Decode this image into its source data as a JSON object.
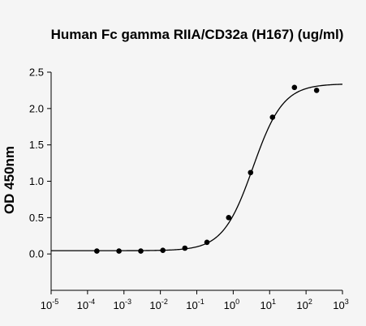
{
  "chart_data": {
    "type": "scatter",
    "title": "Human Fc gamma RIIA/CD32a (H167) (ug/ml)",
    "xlabel": "",
    "ylabel": "OD 450nm",
    "x_scale": "log",
    "xlim": [
      1e-05,
      1000
    ],
    "ylim": [
      -0.5,
      2.5
    ],
    "x_ticks": [
      {
        "value": 1e-05,
        "base": "10",
        "exp": "-5"
      },
      {
        "value": 0.0001,
        "base": "10",
        "exp": "-4"
      },
      {
        "value": 0.001,
        "base": "10",
        "exp": "-3"
      },
      {
        "value": 0.01,
        "base": "10",
        "exp": "-2"
      },
      {
        "value": 0.1,
        "base": "10",
        "exp": "-1"
      },
      {
        "value": 1,
        "base": "10",
        "exp": "0"
      },
      {
        "value": 10,
        "base": "10",
        "exp": "1"
      },
      {
        "value": 100,
        "base": "10",
        "exp": "2"
      },
      {
        "value": 1000,
        "base": "10",
        "exp": "3"
      }
    ],
    "y_ticks": [
      {
        "value": 0.0,
        "label": "0.0"
      },
      {
        "value": 0.5,
        "label": "0.5"
      },
      {
        "value": 1.0,
        "label": "1.0"
      },
      {
        "value": 1.5,
        "label": "1.5"
      },
      {
        "value": 2.0,
        "label": "2.0"
      },
      {
        "value": 2.5,
        "label": "2.5"
      }
    ],
    "grid": false,
    "legend": "none",
    "series": [
      {
        "type": "scatter",
        "x": [
          0.00018,
          0.00073,
          0.0029,
          0.0117,
          0.047,
          0.19,
          0.75,
          3.0,
          12,
          48,
          195
        ],
        "y": [
          0.04,
          0.04,
          0.04,
          0.05,
          0.08,
          0.16,
          0.5,
          1.12,
          1.88,
          2.29,
          2.25
        ]
      },
      {
        "type": "line",
        "fit": "4PL",
        "bottom": 0.045,
        "top": 2.34,
        "ec50": 3.5,
        "hill": 1.05
      }
    ],
    "colors": {
      "marker": "#000000",
      "line": "#000000",
      "background": "#f5f5f5"
    }
  }
}
